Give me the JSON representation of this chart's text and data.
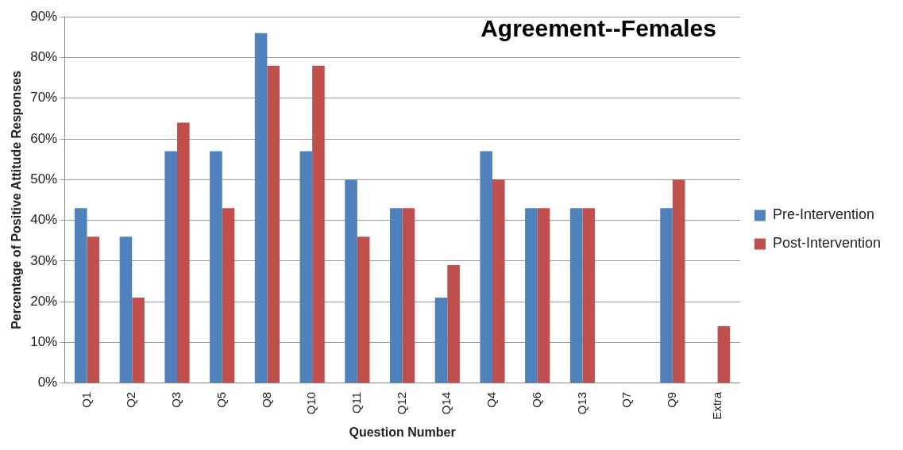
{
  "chart_data": {
    "type": "bar",
    "title": "Agreement--Females",
    "xlabel": "Question Number",
    "ylabel": "Percentage of Positive Attitude Responses",
    "categories": [
      "Q1",
      "Q2",
      "Q3",
      "Q5",
      "Q8",
      "Q10",
      "Q11",
      "Q12",
      "Q14",
      "Q4",
      "Q6",
      "Q13",
      "Q7",
      "Q9",
      "Extra"
    ],
    "series": [
      {
        "name": "Pre-Intervention",
        "color": "#4f81bd",
        "values": [
          43,
          36,
          57,
          57,
          86,
          57,
          50,
          43,
          21,
          57,
          43,
          43,
          0,
          43,
          0
        ]
      },
      {
        "name": "Post-Intervention",
        "color": "#c0504d",
        "values": [
          36,
          21,
          64,
          43,
          78,
          78,
          36,
          43,
          29,
          50,
          43,
          43,
          0,
          50,
          14
        ]
      }
    ],
    "ylim": [
      0,
      90
    ],
    "yticks": [
      {
        "value": 0,
        "label": "0%"
      },
      {
        "value": 10,
        "label": "10%"
      },
      {
        "value": 20,
        "label": "20%"
      },
      {
        "value": 30,
        "label": "30%"
      },
      {
        "value": 40,
        "label": "40%"
      },
      {
        "value": 50,
        "label": "50%"
      },
      {
        "value": 60,
        "label": "60%"
      },
      {
        "value": 70,
        "label": "70%"
      },
      {
        "value": 80,
        "label": "80%"
      },
      {
        "value": 90,
        "label": "90%"
      }
    ],
    "grid": "y",
    "legend": "right"
  }
}
